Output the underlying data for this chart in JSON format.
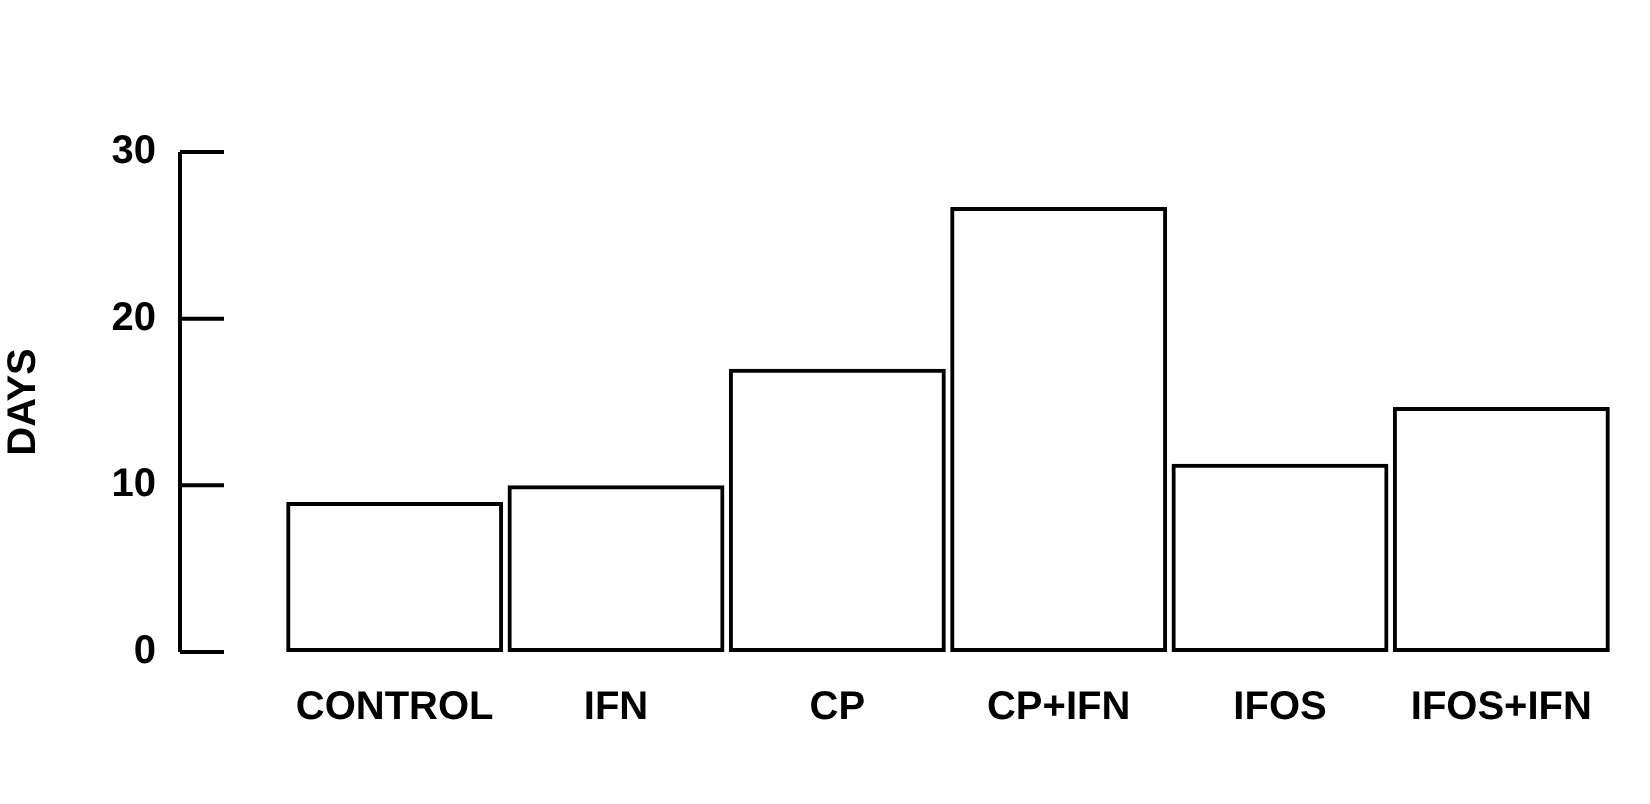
{
  "chart_data": {
    "type": "bar",
    "ylabel": "DAYS",
    "categories": [
      "CONTROL",
      "IFN",
      "CP",
      "CP+IFN",
      "IFOS",
      "IFOS+IFN"
    ],
    "values": [
      9,
      10,
      17,
      26.7,
      11.3,
      14.7
    ],
    "color": "#000000",
    "ylim": [
      0,
      30
    ],
    "yticks": [
      0,
      10,
      20,
      30
    ],
    "grid": false,
    "legend": false
  }
}
